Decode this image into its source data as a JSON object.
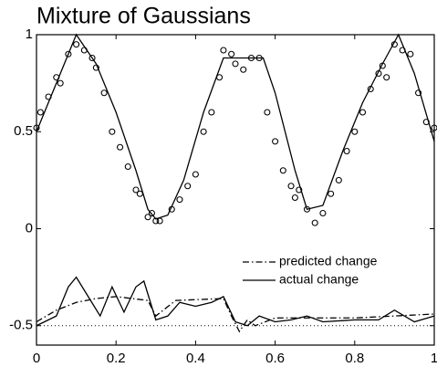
{
  "chart_data": {
    "type": "line",
    "title": "Mixture of Gaussians",
    "xlim": [
      0,
      1
    ],
    "xticks": [
      0,
      0.2,
      0.4,
      0.6,
      0.8,
      1
    ],
    "ylim": [
      -0.6,
      1
    ],
    "yticks": [
      -0.5,
      0,
      0.5,
      1
    ],
    "hline": -0.5,
    "legend": "lower right",
    "series": [
      {
        "style": "markers",
        "color": "#000000",
        "x": [
          0,
          0.01,
          0.03,
          0.05,
          0.06,
          0.08,
          0.1,
          0.12,
          0.14,
          0.15,
          0.17,
          0.19,
          0.21,
          0.23,
          0.25,
          0.26,
          0.28,
          0.29,
          0.3,
          0.31,
          0.34,
          0.36,
          0.38,
          0.4,
          0.42,
          0.44,
          0.46,
          0.47,
          0.49,
          0.5,
          0.52,
          0.54,
          0.56,
          0.58,
          0.6,
          0.62,
          0.64,
          0.65,
          0.66,
          0.68,
          0.7,
          0.72,
          0.74,
          0.76,
          0.78,
          0.8,
          0.82,
          0.84,
          0.86,
          0.87,
          0.88,
          0.9,
          0.92,
          0.94,
          0.96,
          0.98,
          1.0
        ],
        "values": [
          0.52,
          0.6,
          0.68,
          0.78,
          0.75,
          0.9,
          0.95,
          0.92,
          0.88,
          0.83,
          0.7,
          0.5,
          0.42,
          0.32,
          0.2,
          0.18,
          0.06,
          0.08,
          0.04,
          0.04,
          0.1,
          0.15,
          0.22,
          0.28,
          0.5,
          0.6,
          0.78,
          0.92,
          0.9,
          0.85,
          0.82,
          0.88,
          0.88,
          0.6,
          0.45,
          0.3,
          0.22,
          0.16,
          0.2,
          0.1,
          0.03,
          0.08,
          0.18,
          0.25,
          0.4,
          0.5,
          0.6,
          0.72,
          0.8,
          0.84,
          0.78,
          0.95,
          0.92,
          0.9,
          0.7,
          0.55,
          0.52
        ]
      },
      {
        "style": "solid",
        "color": "#000000",
        "x": [
          0,
          0.05,
          0.1,
          0.15,
          0.2,
          0.25,
          0.28,
          0.3,
          0.33,
          0.37,
          0.42,
          0.47,
          0.52,
          0.57,
          0.6,
          0.65,
          0.68,
          0.72,
          0.77,
          0.82,
          0.87,
          0.91,
          0.95,
          1.0
        ],
        "values": [
          0.5,
          0.75,
          1.0,
          0.85,
          0.6,
          0.3,
          0.1,
          0.05,
          0.07,
          0.25,
          0.6,
          0.88,
          0.88,
          0.88,
          0.7,
          0.3,
          0.1,
          0.12,
          0.4,
          0.65,
          0.85,
          1.0,
          0.8,
          0.45
        ]
      },
      {
        "name": "predicted change",
        "style": "dash-dot",
        "color": "#000000",
        "x": [
          0,
          0.05,
          0.1,
          0.15,
          0.2,
          0.28,
          0.3,
          0.35,
          0.47,
          0.49,
          0.51,
          0.53,
          0.55,
          0.6,
          0.8,
          1.0
        ],
        "values": [
          -0.48,
          -0.42,
          -0.38,
          -0.36,
          -0.35,
          -0.37,
          -0.45,
          -0.37,
          -0.36,
          -0.45,
          -0.53,
          -0.47,
          -0.5,
          -0.46,
          -0.46,
          -0.44
        ]
      },
      {
        "name": "actual change",
        "style": "solid",
        "color": "#000000",
        "x": [
          0,
          0.05,
          0.08,
          0.1,
          0.13,
          0.16,
          0.19,
          0.22,
          0.25,
          0.27,
          0.3,
          0.33,
          0.36,
          0.4,
          0.44,
          0.47,
          0.5,
          0.53,
          0.56,
          0.6,
          0.64,
          0.68,
          0.72,
          0.8,
          0.86,
          0.9,
          0.95,
          1.0
        ],
        "values": [
          -0.5,
          -0.45,
          -0.3,
          -0.25,
          -0.35,
          -0.45,
          -0.3,
          -0.43,
          -0.3,
          -0.27,
          -0.47,
          -0.45,
          -0.38,
          -0.4,
          -0.38,
          -0.35,
          -0.48,
          -0.5,
          -0.45,
          -0.48,
          -0.47,
          -0.45,
          -0.48,
          -0.47,
          -0.47,
          -0.42,
          -0.48,
          -0.45
        ]
      }
    ]
  }
}
